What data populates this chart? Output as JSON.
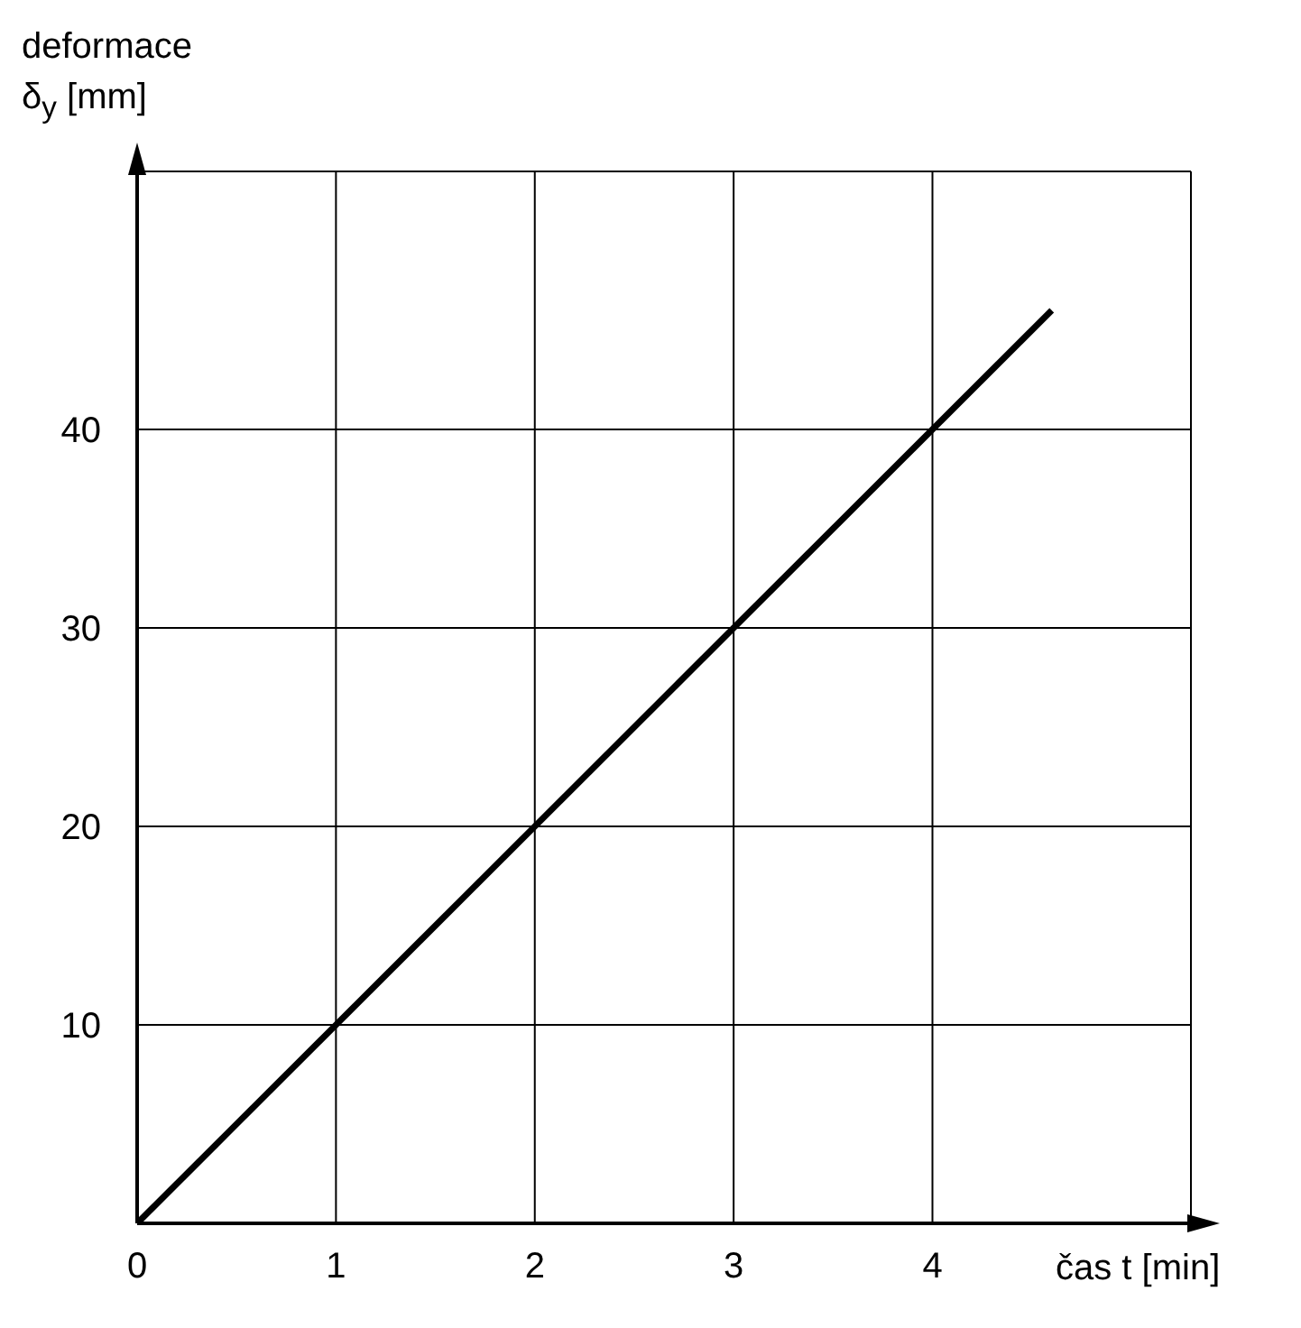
{
  "chart_data": {
    "type": "line",
    "xlabel": "čas t [min]",
    "ylabel": "deformace δ$_{y}$ [mm]",
    "x": [
      0,
      4.6
    ],
    "series": [
      {
        "color": "#000000",
        "values": [
          0,
          46
        ]
      }
    ],
    "xlim": [
      0,
      5.3
    ],
    "xticks": [
      0,
      1,
      2,
      3,
      4
    ],
    "ylim": [
      0,
      53
    ],
    "yticks": [
      10,
      20,
      30,
      40
    ],
    "grid": true,
    "marker": "none",
    "line_style": "solid"
  }
}
